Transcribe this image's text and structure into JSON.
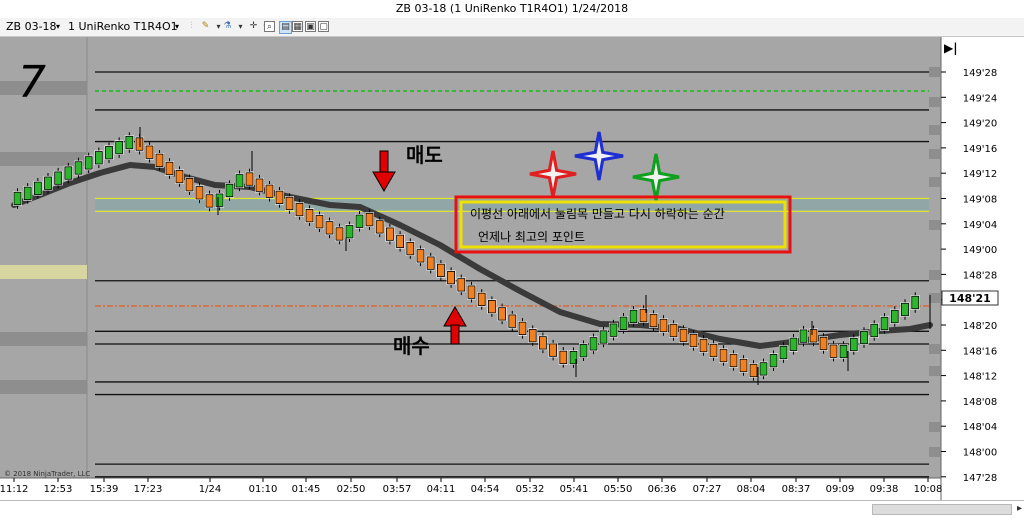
{
  "window": {
    "title": "ZB 03-18 (1 UniRenko T1R4O1)  1/24/2018"
  },
  "toolbar": {
    "instrument": "ZB 03-18",
    "interval": "1 UniRenko T1R4O1"
  },
  "chart": {
    "panel_number": "7",
    "copyright": "© 2018 NinjaTrader, LLC",
    "sell_label": "매도",
    "buy_label": "매수",
    "annotation_line1": "이평선 아래에서 눌림목 만들고 다시 하락하는 순간",
    "annotation_line2": "언제나 최고의 포인트",
    "current_price": "148'21",
    "colors": {
      "background": "#a6a6a6",
      "up_candle": "#2db52d",
      "down_candle": "#f08020",
      "moving_average": "#3a3a3a",
      "level_green": "#00c000",
      "level_orange": "#e06020",
      "level_yellow": "#ffff00",
      "annotation_border": "#e81010",
      "annotation_inner": "#f0e000",
      "sell_arrow": "#e00000",
      "buy_arrow": "#e00000"
    },
    "star_colors": [
      "#e02020",
      "#2030d0",
      "#10a020"
    ],
    "price_ticks": [
      "149'28",
      "149'24",
      "149'20",
      "149'16",
      "149'12",
      "149'08",
      "149'04",
      "149'00",
      "148'28",
      "148'24",
      "148'20",
      "148'16",
      "148'12",
      "148'08",
      "148'04",
      "148'00",
      "147'28"
    ],
    "time_ticks": [
      "11:12",
      "12:53",
      "15:39",
      "17:23",
      "1/24",
      "01:10",
      "01:45",
      "02:50",
      "03:57",
      "04:11",
      "04:54",
      "05:32",
      "05:41",
      "05:50",
      "06:36",
      "07:27",
      "08:04",
      "08:37",
      "09:09",
      "09:38",
      "10:08"
    ]
  },
  "chart_data": {
    "type": "candlestick",
    "y_axis_unit": "price (32nds)",
    "ylim": [
      "147'26",
      "149'30"
    ],
    "moving_average": true,
    "levels": [
      "149'28",
      "149'25",
      "149'22",
      "149'17",
      "149'08",
      "149'06",
      "148'27",
      "148'23",
      "148'19",
      "148'17",
      "148'11",
      "148'09",
      "147'30",
      "147'28"
    ]
  }
}
